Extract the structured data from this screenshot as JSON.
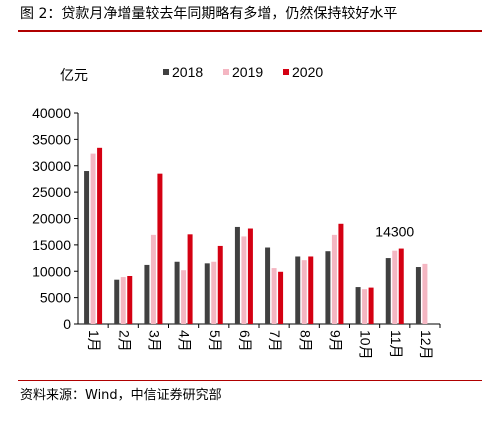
{
  "figure_title": "图 2：贷款月净增量较去年同期略有多增，仍然保持较好水平",
  "source": "资料来源：Wind，中信证券研究部",
  "chart_data": {
    "type": "bar",
    "ylabel": "亿元",
    "ylim": [
      0,
      40000
    ],
    "yticks": [
      0,
      5000,
      10000,
      15000,
      20000,
      25000,
      30000,
      35000,
      40000
    ],
    "legend_position": "top",
    "grid": false,
    "categories": [
      "1月",
      "2月",
      "3月",
      "4月",
      "5月",
      "6月",
      "7月",
      "8月",
      "9月",
      "10月",
      "11月",
      "12月"
    ],
    "series": [
      {
        "name": "2018",
        "color": "#404040",
        "values": [
          29000,
          8400,
          11200,
          11800,
          11500,
          18400,
          14500,
          12800,
          13800,
          7000,
          12500,
          10800
        ]
      },
      {
        "name": "2019",
        "color": "#f4b6c2",
        "values": [
          32300,
          8900,
          16900,
          10200,
          11800,
          16600,
          10600,
          12100,
          16900,
          6600,
          13900,
          11400
        ]
      },
      {
        "name": "2020",
        "color": "#d40012",
        "values": [
          33400,
          9100,
          28500,
          17000,
          14800,
          18100,
          9900,
          12800,
          19000,
          6900,
          14300,
          null
        ]
      }
    ],
    "annotations": [
      {
        "text": "14300"
      }
    ]
  }
}
